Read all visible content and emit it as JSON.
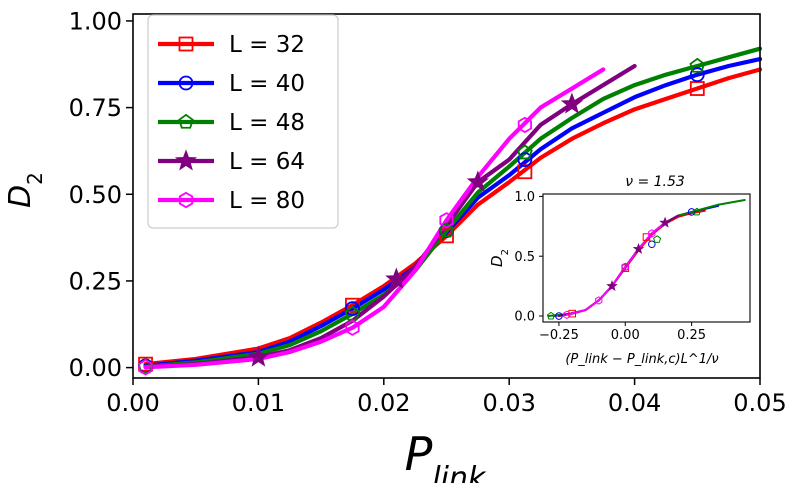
{
  "chart_data": [
    {
      "type": "line",
      "xlabel": "P",
      "xlabel_sub": "link",
      "ylabel": "D",
      "ylabel_sub": "2",
      "xlim": [
        0.0,
        0.05
      ],
      "ylim": [
        -0.03,
        1.02
      ],
      "xticks": [
        0.0,
        0.01,
        0.02,
        0.03,
        0.04,
        0.05
      ],
      "xtick_labels": [
        "0.00",
        "0.01",
        "0.02",
        "0.03",
        "0.04",
        "0.05"
      ],
      "yticks": [
        0.0,
        0.25,
        0.5,
        0.75,
        1.0
      ],
      "ytick_labels": [
        "0.00",
        "0.25",
        "0.50",
        "0.75",
        "1.00"
      ],
      "grid": false,
      "legend_position": "upper-left",
      "series": [
        {
          "name": "L = 32",
          "color": "#ff0000",
          "marker": "square",
          "x": [
            0.001,
            0.005,
            0.01,
            0.0125,
            0.015,
            0.0175,
            0.02,
            0.0225,
            0.025,
            0.0275,
            0.03,
            0.0325,
            0.035,
            0.0375,
            0.04,
            0.0425,
            0.045,
            0.0475,
            0.05
          ],
          "y": [
            0.01,
            0.025,
            0.055,
            0.085,
            0.13,
            0.18,
            0.235,
            0.3,
            0.38,
            0.47,
            0.535,
            0.605,
            0.66,
            0.705,
            0.745,
            0.775,
            0.805,
            0.835,
            0.86
          ],
          "marker_x": [
            0.001,
            0.0175,
            0.025,
            0.03125,
            0.045
          ],
          "marker_y": [
            0.01,
            0.18,
            0.38,
            0.565,
            0.805
          ]
        },
        {
          "name": "L = 40",
          "color": "#0000ff",
          "marker": "circle",
          "x": [
            0.001,
            0.005,
            0.01,
            0.0125,
            0.015,
            0.0175,
            0.02,
            0.0225,
            0.025,
            0.0275,
            0.03,
            0.0325,
            0.035,
            0.0375,
            0.04,
            0.0425,
            0.045,
            0.0475,
            0.05
          ],
          "y": [
            0.005,
            0.02,
            0.045,
            0.075,
            0.12,
            0.17,
            0.225,
            0.29,
            0.39,
            0.49,
            0.555,
            0.63,
            0.69,
            0.735,
            0.78,
            0.815,
            0.845,
            0.87,
            0.89
          ],
          "marker_x": [
            0.001,
            0.0175,
            0.025,
            0.03125,
            0.045
          ],
          "marker_y": [
            0.005,
            0.17,
            0.395,
            0.6,
            0.845
          ]
        },
        {
          "name": "L = 48",
          "color": "#008000",
          "marker": "pentagon",
          "x": [
            0.001,
            0.005,
            0.01,
            0.0125,
            0.015,
            0.0175,
            0.02,
            0.0225,
            0.025,
            0.0275,
            0.03,
            0.0325,
            0.035,
            0.0375,
            0.04,
            0.0425,
            0.045,
            0.0475,
            0.05
          ],
          "y": [
            0.003,
            0.015,
            0.04,
            0.065,
            0.105,
            0.155,
            0.21,
            0.28,
            0.395,
            0.505,
            0.58,
            0.66,
            0.72,
            0.775,
            0.815,
            0.845,
            0.87,
            0.895,
            0.92
          ],
          "marker_x": [
            0.001,
            0.0175,
            0.025,
            0.03125,
            0.045
          ],
          "marker_y": [
            0.003,
            0.155,
            0.395,
            0.62,
            0.87
          ]
        },
        {
          "name": "L = 64",
          "color": "#800080",
          "marker": "star",
          "x": [
            0.001,
            0.005,
            0.01,
            0.0125,
            0.015,
            0.0175,
            0.02,
            0.0225,
            0.025,
            0.0275,
            0.03,
            0.0325,
            0.035,
            0.0375,
            0.04
          ],
          "y": [
            0.002,
            0.01,
            0.03,
            0.05,
            0.085,
            0.135,
            0.205,
            0.29,
            0.41,
            0.535,
            0.6,
            0.7,
            0.76,
            0.815,
            0.87
          ],
          "marker_x": [
            0.01,
            0.021,
            0.0275,
            0.035
          ],
          "marker_y": [
            0.03,
            0.255,
            0.535,
            0.76
          ]
        },
        {
          "name": "L = 80",
          "color": "#ff00ff",
          "marker": "hexagon",
          "x": [
            0.001,
            0.005,
            0.01,
            0.0125,
            0.015,
            0.0175,
            0.02,
            0.0225,
            0.025,
            0.0275,
            0.03,
            0.0325,
            0.035,
            0.0375
          ],
          "y": [
            0.001,
            0.008,
            0.025,
            0.045,
            0.075,
            0.115,
            0.175,
            0.28,
            0.425,
            0.55,
            0.66,
            0.75,
            0.805,
            0.86
          ],
          "marker_x": [
            0.001,
            0.0175,
            0.025,
            0.03125
          ],
          "marker_y": [
            0.001,
            0.115,
            0.425,
            0.7
          ]
        }
      ]
    },
    {
      "type": "line",
      "role": "inset",
      "title": "ν = 1.53",
      "xlabel": "(P_link − P_link,c)L^1/ν",
      "ylabel": "D",
      "ylabel_sub": "2",
      "xlim": [
        -0.31,
        0.47
      ],
      "ylim": [
        -0.05,
        1.02
      ],
      "xticks": [
        -0.25,
        0.0,
        0.25
      ],
      "xtick_labels": [
        "−0.25",
        "0.00",
        "0.25"
      ],
      "yticks": [
        0.0,
        0.5,
        1.0
      ],
      "ytick_labels": [
        "0.0",
        "0.5",
        "1.0"
      ],
      "grid": false,
      "series": [
        {
          "name": "L = 32",
          "color": "#ff0000",
          "marker": "square",
          "x": [
            -0.25,
            -0.2,
            -0.15,
            -0.1,
            -0.05,
            0.0,
            0.05,
            0.1,
            0.15,
            0.2,
            0.25,
            0.3
          ],
          "y": [
            0.0,
            0.02,
            0.05,
            0.13,
            0.25,
            0.4,
            0.55,
            0.68,
            0.77,
            0.83,
            0.86,
            0.88
          ],
          "marker_x": [
            -0.2,
            0.0,
            0.08
          ],
          "marker_y": [
            0.02,
            0.4,
            0.66
          ]
        },
        {
          "name": "L = 40",
          "color": "#0000ff",
          "marker": "circle",
          "x": [
            -0.27,
            -0.2,
            -0.15,
            -0.1,
            -0.05,
            0.0,
            0.05,
            0.1,
            0.15,
            0.2,
            0.25,
            0.35
          ],
          "y": [
            0.0,
            0.02,
            0.05,
            0.13,
            0.25,
            0.41,
            0.56,
            0.69,
            0.78,
            0.84,
            0.87,
            0.92
          ],
          "marker_x": [
            -0.25,
            0.0,
            0.1,
            0.25
          ],
          "marker_y": [
            0.0,
            0.41,
            0.6,
            0.87
          ]
        },
        {
          "name": "L = 48",
          "color": "#008000",
          "marker": "pentagon",
          "x": [
            -0.29,
            -0.2,
            -0.15,
            -0.1,
            -0.05,
            0.0,
            0.05,
            0.1,
            0.15,
            0.2,
            0.25,
            0.35,
            0.45
          ],
          "y": [
            0.0,
            0.02,
            0.05,
            0.13,
            0.25,
            0.41,
            0.56,
            0.69,
            0.78,
            0.84,
            0.87,
            0.93,
            0.97
          ],
          "marker_x": [
            -0.28,
            0.0,
            0.12,
            0.27
          ],
          "marker_y": [
            0.0,
            0.41,
            0.64,
            0.87
          ]
        },
        {
          "name": "L = 64",
          "color": "#800080",
          "marker": "star",
          "x": [
            -0.25,
            -0.15,
            -0.1,
            -0.05,
            0.0,
            0.05,
            0.1,
            0.15,
            0.2
          ],
          "y": [
            0.0,
            0.05,
            0.13,
            0.25,
            0.41,
            0.56,
            0.69,
            0.78,
            0.84
          ],
          "marker_x": [
            -0.05,
            0.05,
            0.15
          ],
          "marker_y": [
            0.25,
            0.56,
            0.78
          ]
        },
        {
          "name": "L = 80",
          "color": "#ff00ff",
          "marker": "hexagon",
          "x": [
            -0.22,
            -0.15,
            -0.1,
            -0.05,
            0.0,
            0.05,
            0.1,
            0.15
          ],
          "y": [
            0.01,
            0.05,
            0.13,
            0.25,
            0.41,
            0.56,
            0.69,
            0.78
          ],
          "marker_x": [
            -0.22,
            -0.1,
            0.0,
            0.1
          ],
          "marker_y": [
            0.01,
            0.13,
            0.41,
            0.69
          ]
        }
      ]
    }
  ]
}
